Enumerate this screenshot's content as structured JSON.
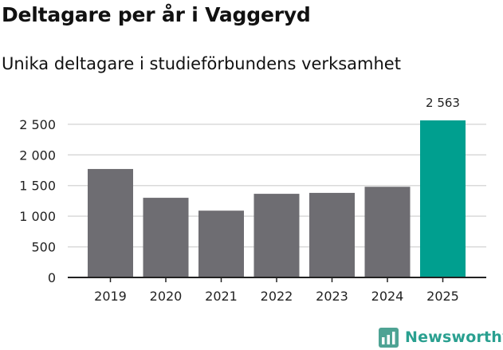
{
  "title": "Deltagare per år i Vaggeryd",
  "subtitle": "Unika deltagare i studieförbundens verksamhet",
  "brand": {
    "name": "Newsworthy",
    "color": "#2aa090",
    "icon": "newsworthy-logo-icon"
  },
  "colors": {
    "bar_default": "#6e6d72",
    "bar_highlight": "#009f8f",
    "grid": "#d9d9d9",
    "axis": "#222222"
  },
  "chart_data": {
    "type": "bar",
    "title": "Deltagare per år i Vaggeryd",
    "subtitle": "Unika deltagare i studieförbundens verksamhet",
    "xlabel": "",
    "ylabel": "",
    "categories": [
      "2019",
      "2020",
      "2021",
      "2022",
      "2023",
      "2024",
      "2025"
    ],
    "values": [
      1770,
      1300,
      1090,
      1365,
      1380,
      1480,
      2563
    ],
    "highlight_index": 6,
    "data_labels": [
      {
        "index": 6,
        "text": "2 563"
      }
    ],
    "ylim": [
      0,
      2563
    ],
    "yticks": [
      0,
      500,
      1000,
      1500,
      2000,
      2500
    ],
    "ytick_labels": [
      "0",
      "500",
      "1 000",
      "1 500",
      "2 000",
      "2 500"
    ],
    "grid": true,
    "legend": "none"
  }
}
